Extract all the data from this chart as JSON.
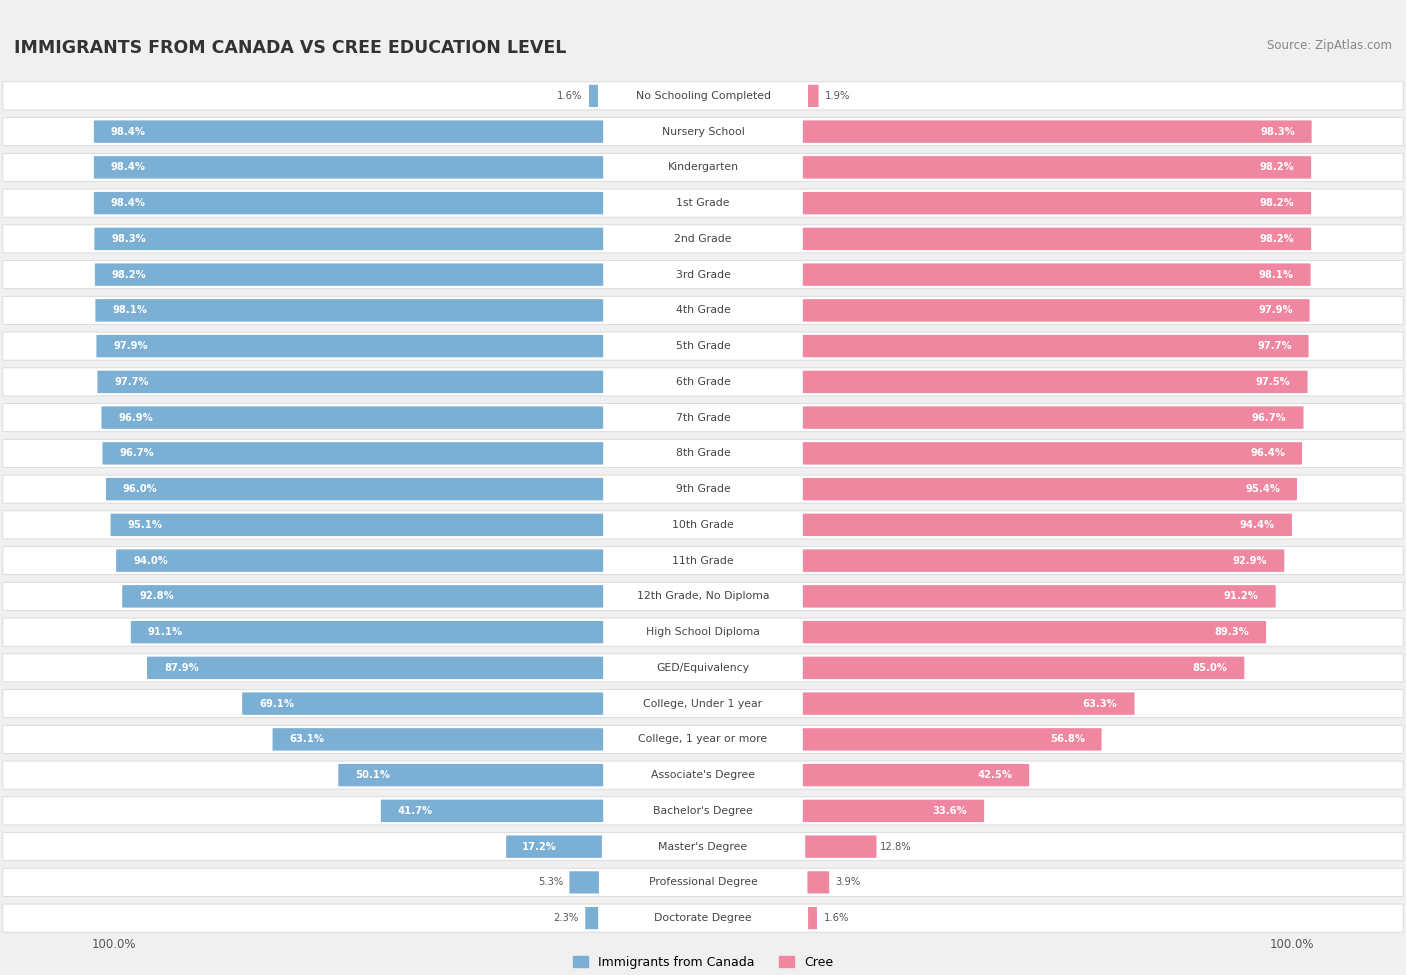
{
  "title": "IMMIGRANTS FROM CANADA VS CREE EDUCATION LEVEL",
  "source": "Source: ZipAtlas.com",
  "categories": [
    "No Schooling Completed",
    "Nursery School",
    "Kindergarten",
    "1st Grade",
    "2nd Grade",
    "3rd Grade",
    "4th Grade",
    "5th Grade",
    "6th Grade",
    "7th Grade",
    "8th Grade",
    "9th Grade",
    "10th Grade",
    "11th Grade",
    "12th Grade, No Diploma",
    "High School Diploma",
    "GED/Equivalency",
    "College, Under 1 year",
    "College, 1 year or more",
    "Associate's Degree",
    "Bachelor's Degree",
    "Master's Degree",
    "Professional Degree",
    "Doctorate Degree"
  ],
  "canada_values": [
    1.6,
    98.4,
    98.4,
    98.4,
    98.3,
    98.2,
    98.1,
    97.9,
    97.7,
    96.9,
    96.7,
    96.0,
    95.1,
    94.0,
    92.8,
    91.1,
    87.9,
    69.1,
    63.1,
    50.1,
    41.7,
    17.2,
    5.3,
    2.3
  ],
  "cree_values": [
    1.9,
    98.3,
    98.2,
    98.2,
    98.2,
    98.1,
    97.9,
    97.7,
    97.5,
    96.7,
    96.4,
    95.4,
    94.4,
    92.9,
    91.2,
    89.3,
    85.0,
    63.3,
    56.8,
    42.5,
    33.6,
    12.8,
    3.9,
    1.6
  ],
  "canada_color": "#7bafd4",
  "cree_color": "#f087a0",
  "bg_color": "#f0f0f0",
  "row_bg_color": "#ffffff",
  "row_border_color": "#d8d8d8",
  "legend_canada": "Immigrants from Canada",
  "legend_cree": "Cree",
  "title_color": "#333333",
  "source_color": "#888888",
  "label_color_inside": "#ffffff",
  "label_color_outside": "#555555",
  "axis_label": "100.0%"
}
